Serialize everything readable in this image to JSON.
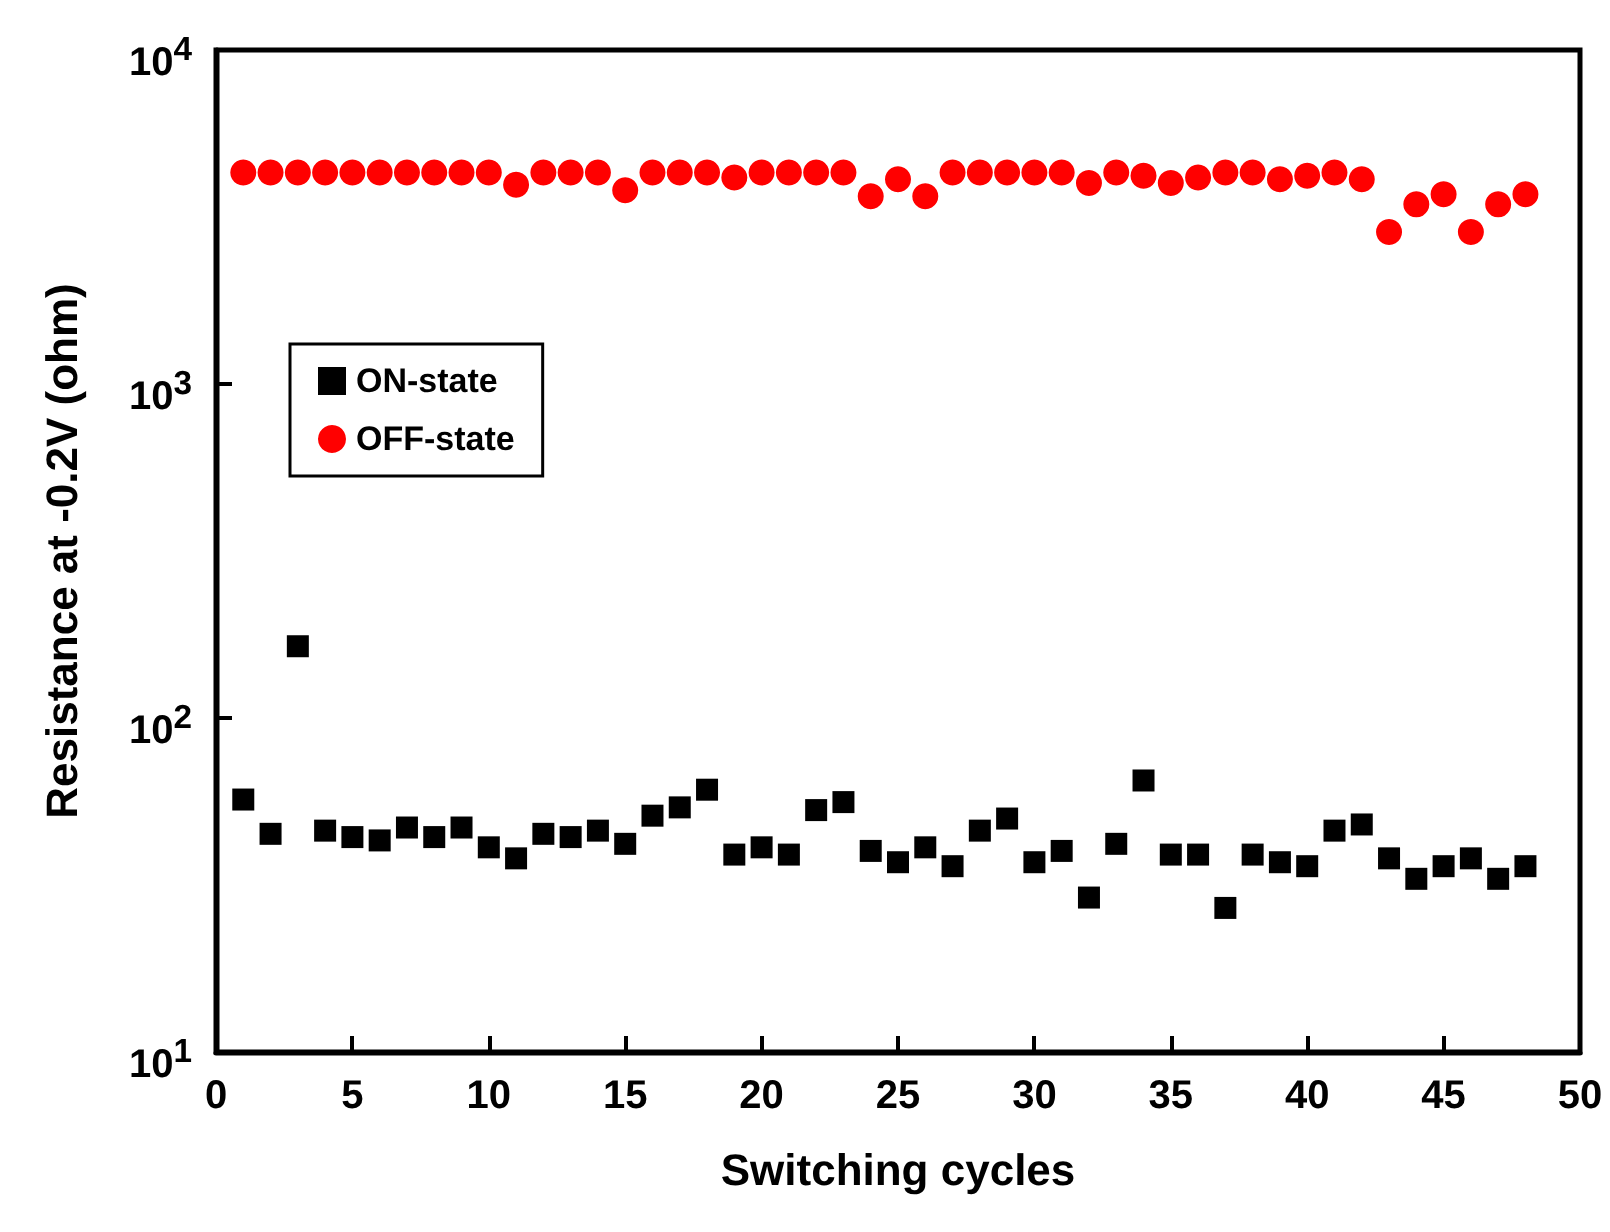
{
  "chart_data": {
    "type": "scatter",
    "xlabel": "Switching cycles",
    "ylabel": "Resistance at -0.2V (ohm)",
    "log": "y",
    "xlim": [
      0,
      50
    ],
    "xticks": [
      0,
      5,
      10,
      15,
      20,
      25,
      30,
      35,
      40,
      45,
      50
    ],
    "ylim": [
      10,
      10000
    ],
    "yticks": [
      {
        "value": 10,
        "label": "10$^{1}$"
      },
      {
        "value": 100,
        "label": "10$^{2}$"
      },
      {
        "value": 1000,
        "label": "10$^{3}$"
      },
      {
        "value": 10000,
        "label": "10$^{4}$"
      }
    ],
    "grid": false,
    "legend": "top left",
    "x": [
      1,
      2,
      3,
      4,
      5,
      6,
      7,
      8,
      9,
      10,
      11,
      12,
      13,
      14,
      15,
      16,
      17,
      18,
      19,
      20,
      21,
      22,
      23,
      24,
      25,
      26,
      27,
      28,
      29,
      30,
      31,
      32,
      33,
      34,
      35,
      36,
      37,
      38,
      39,
      40,
      41,
      42,
      43,
      44,
      45,
      46,
      47,
      48
    ],
    "series": [
      {
        "name": "ON-state",
        "color": "#000000",
        "marker": "square",
        "values": [
          57,
          45,
          164,
          46,
          44,
          43,
          47,
          44,
          47,
          41,
          38,
          45,
          44,
          46,
          42,
          51,
          54,
          61,
          39,
          41,
          39,
          53,
          56,
          40,
          37,
          41,
          36,
          46,
          50,
          37,
          40,
          29,
          42,
          65,
          39,
          39,
          27,
          39,
          37,
          36,
          46,
          48,
          38,
          33,
          36,
          38,
          33,
          36
        ]
      },
      {
        "name": "OFF-state",
        "color": "#ff0000",
        "marker": "circle",
        "values": [
          4300,
          4300,
          4300,
          4300,
          4300,
          4300,
          4300,
          4300,
          4300,
          4300,
          3950,
          4300,
          4300,
          4300,
          3800,
          4300,
          4300,
          4300,
          4150,
          4300,
          4300,
          4300,
          4300,
          3650,
          4100,
          3650,
          4300,
          4300,
          4300,
          4300,
          4300,
          4000,
          4300,
          4200,
          4000,
          4150,
          4300,
          4300,
          4100,
          4200,
          4300,
          4100,
          2850,
          3450,
          3700,
          2850,
          3450,
          3700
        ]
      }
    ]
  }
}
